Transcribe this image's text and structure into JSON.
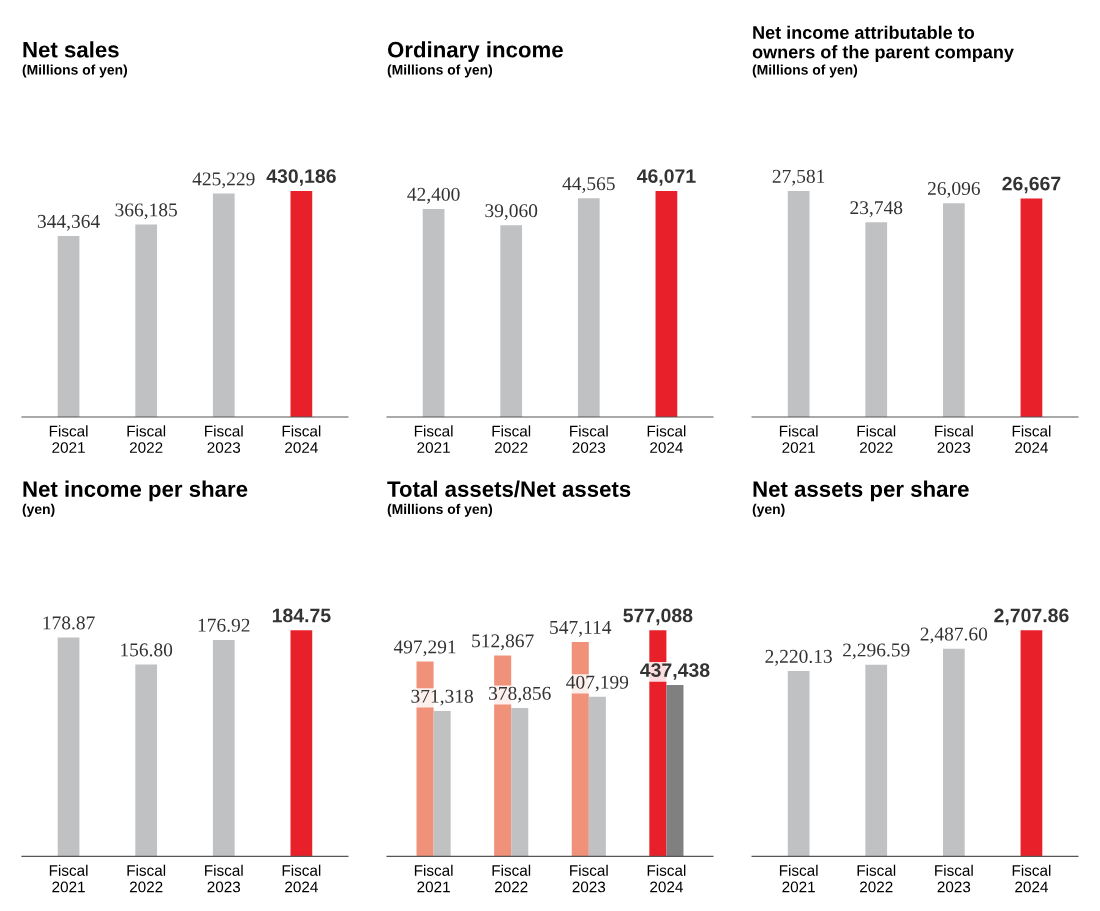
{
  "chart_data": [
    {
      "type": "bar",
      "title": "Net sales",
      "subtitle": "(Millions of yen)",
      "categories": [
        "Fiscal\n2021",
        "Fiscal\n2022",
        "Fiscal\n2023",
        "Fiscal\n2024"
      ],
      "values": [
        344364,
        366185,
        425229,
        430186
      ],
      "value_labels": [
        "344,364",
        "366,185",
        "425,229",
        "430,186"
      ],
      "colors": [
        "#c0c1c3",
        "#c0c1c3",
        "#c0c1c3",
        "#e8202a"
      ]
    },
    {
      "type": "bar",
      "title": "Ordinary income",
      "subtitle": "(Millions of yen)",
      "categories": [
        "Fiscal\n2021",
        "Fiscal\n2022",
        "Fiscal\n2023",
        "Fiscal\n2024"
      ],
      "values": [
        42400,
        39060,
        44565,
        46071
      ],
      "value_labels": [
        "42,400",
        "39,060",
        "44,565",
        "46,071"
      ],
      "colors": [
        "#c0c1c3",
        "#c0c1c3",
        "#c0c1c3",
        "#e8202a"
      ]
    },
    {
      "type": "bar",
      "title": "Net income attributable to\nowners of the parent company",
      "subtitle": "(Millions of yen)",
      "categories": [
        "Fiscal\n2021",
        "Fiscal\n2022",
        "Fiscal\n2023",
        "Fiscal\n2024"
      ],
      "values": [
        27581,
        23748,
        26096,
        26667
      ],
      "value_labels": [
        "27,581",
        "23,748",
        "26,096",
        "26,667"
      ],
      "colors": [
        "#c0c1c3",
        "#c0c1c3",
        "#c0c1c3",
        "#e8202a"
      ]
    },
    {
      "type": "bar",
      "title": "Net income per share",
      "subtitle": "(yen)",
      "categories": [
        "Fiscal\n2021",
        "Fiscal\n2022",
        "Fiscal\n2023",
        "Fiscal\n2024"
      ],
      "values": [
        178.87,
        156.8,
        176.92,
        184.75
      ],
      "value_labels": [
        "178.87",
        "156.80",
        "176.92",
        "184.75"
      ],
      "colors": [
        "#c0c1c3",
        "#c0c1c3",
        "#c0c1c3",
        "#e8202a"
      ]
    },
    {
      "type": "bar",
      "title": "Total assets/Net assets",
      "subtitle": "(Millions of yen)",
      "categories": [
        "Fiscal\n2021",
        "Fiscal\n2022",
        "Fiscal\n2023",
        "Fiscal\n2024"
      ],
      "series": [
        {
          "colors": [
            "#f0917a",
            "#f0917a",
            "#f0917a",
            "#e8202a"
          ],
          "values": [
            497291,
            512867,
            547114,
            577088
          ],
          "value_labels": [
            "497,291",
            "512,867",
            "547,114",
            "577,088"
          ]
        },
        {
          "colors": [
            "#c0c1c3",
            "#c0c1c3",
            "#c0c1c3",
            "#808080"
          ],
          "values": [
            371318,
            378856,
            407199,
            437438
          ],
          "value_labels": [
            "371,318",
            "378,856",
            "407,199",
            "437,438"
          ]
        }
      ]
    },
    {
      "type": "bar",
      "title": "Net assets per share",
      "subtitle": "(yen)",
      "categories": [
        "Fiscal\n2021",
        "Fiscal\n2022",
        "Fiscal\n2023",
        "Fiscal\n2024"
      ],
      "values": [
        2220.13,
        2296.59,
        2487.6,
        2707.86
      ],
      "value_labels": [
        "2,220.13",
        "2,296.59",
        "2,487.60",
        "2,707.86"
      ],
      "colors": [
        "#c0c1c3",
        "#c0c1c3",
        "#c0c1c3",
        "#e8202a"
      ]
    }
  ]
}
